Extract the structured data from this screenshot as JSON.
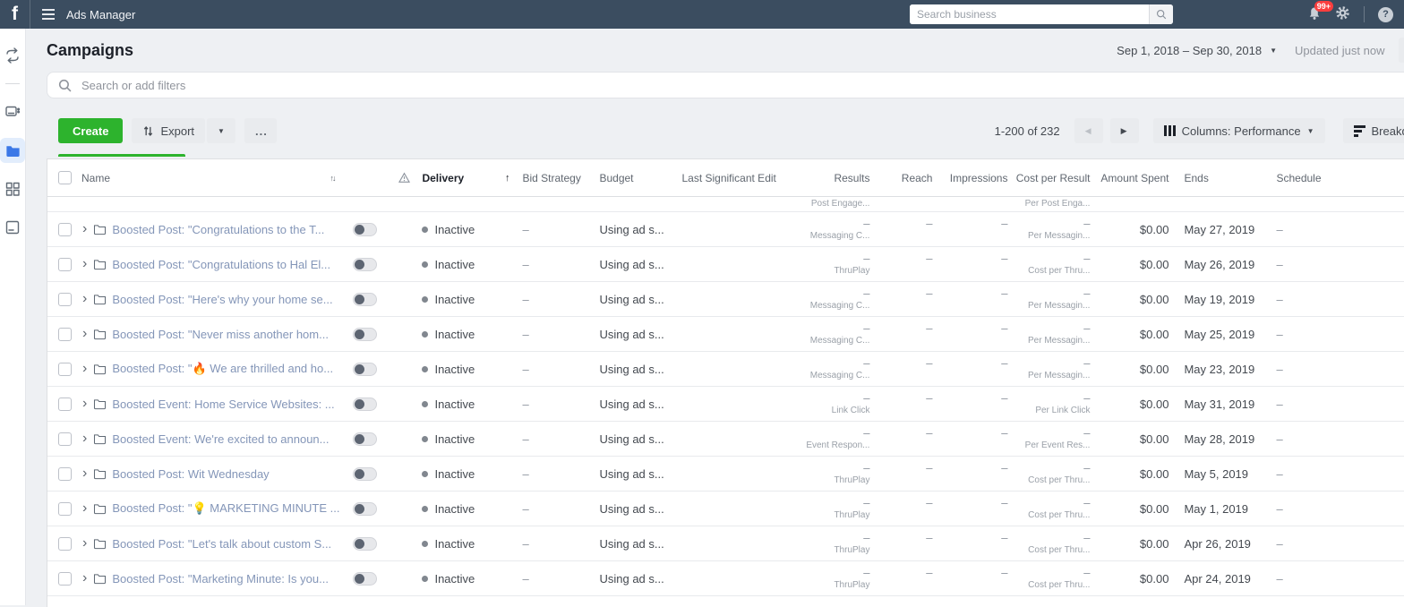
{
  "topbar": {
    "logo_letter": "f",
    "app_title": "Ads Manager",
    "search_placeholder": "Search business",
    "notification_badge": "99+",
    "help_glyph": "?"
  },
  "header": {
    "title": "Campaigns",
    "date_range": "Sep 1, 2018 – Sep 30, 2018",
    "updated_status": "Updated just now"
  },
  "filter_bar": {
    "placeholder": "Search or add filters"
  },
  "toolbar": {
    "create_label": "Create",
    "export_label": "Export",
    "more_label": "...",
    "pagination": "1-200 of 232",
    "prev_glyph": "◀",
    "next_glyph": "▶",
    "columns_label": "Columns: Performance",
    "breakdown_label": "Breakdown"
  },
  "colors": {
    "topbar_bg": "#3b4d60",
    "accent_green": "#2db32d",
    "active_icon_blue": "#3b78e7",
    "name_link_blue": "#8496b8",
    "badge_red": "#fa3e3e"
  },
  "table": {
    "headers": {
      "name": "Name",
      "delivery": "Delivery",
      "bid": "Bid Strategy",
      "budget": "Budget",
      "last_edit": "Last Significant Edit",
      "results": "Results",
      "reach": "Reach",
      "impressions": "Impressions",
      "cost": "Cost per Result",
      "amount": "Amount Spent",
      "ends": "Ends",
      "schedule": "Schedule"
    },
    "partial_row": {
      "results_label": "Post Engage...",
      "cost_label": "Per Post Enga..."
    },
    "rows": [
      {
        "name": "Boosted Post: \"Congratulations to the T...",
        "delivery": "Inactive",
        "bid": "–",
        "budget": "Using ad s...",
        "last_edit": "",
        "results_value": "–",
        "results_label": "Messaging C...",
        "reach": "–",
        "impressions": "–",
        "cost_value": "–",
        "cost_label": "Per Messagin...",
        "amount": "$0.00",
        "ends": "May 27, 2019",
        "schedule": "–"
      },
      {
        "name": "Boosted Post: \"Congratulations to Hal El...",
        "delivery": "Inactive",
        "bid": "–",
        "budget": "Using ad s...",
        "last_edit": "",
        "results_value": "–",
        "results_label": "ThruPlay",
        "reach": "–",
        "impressions": "–",
        "cost_value": "–",
        "cost_label": "Cost per Thru...",
        "amount": "$0.00",
        "ends": "May 26, 2019",
        "schedule": "–"
      },
      {
        "name": "Boosted Post: \"Here's why your home se...",
        "delivery": "Inactive",
        "bid": "–",
        "budget": "Using ad s...",
        "last_edit": "",
        "results_value": "–",
        "results_label": "Messaging C...",
        "reach": "–",
        "impressions": "–",
        "cost_value": "–",
        "cost_label": "Per Messagin...",
        "amount": "$0.00",
        "ends": "May 19, 2019",
        "schedule": "–"
      },
      {
        "name": "Boosted Post: \"Never miss another hom...",
        "delivery": "Inactive",
        "bid": "–",
        "budget": "Using ad s...",
        "last_edit": "",
        "results_value": "–",
        "results_label": "Messaging C...",
        "reach": "–",
        "impressions": "–",
        "cost_value": "–",
        "cost_label": "Per Messagin...",
        "amount": "$0.00",
        "ends": "May 25, 2019",
        "schedule": "–"
      },
      {
        "name": "Boosted Post: \"🔥 We are thrilled and ho...",
        "delivery": "Inactive",
        "bid": "–",
        "budget": "Using ad s...",
        "last_edit": "",
        "results_value": "–",
        "results_label": "Messaging C...",
        "reach": "–",
        "impressions": "–",
        "cost_value": "–",
        "cost_label": "Per Messagin...",
        "amount": "$0.00",
        "ends": "May 23, 2019",
        "schedule": "–"
      },
      {
        "name": "Boosted Event: Home Service Websites: ...",
        "delivery": "Inactive",
        "bid": "–",
        "budget": "Using ad s...",
        "last_edit": "",
        "results_value": "–",
        "results_label": "Link Click",
        "reach": "–",
        "impressions": "–",
        "cost_value": "–",
        "cost_label": "Per Link Click",
        "amount": "$0.00",
        "ends": "May 31, 2019",
        "schedule": "–"
      },
      {
        "name": "Boosted Event: We're excited to announ...",
        "delivery": "Inactive",
        "bid": "–",
        "budget": "Using ad s...",
        "last_edit": "",
        "results_value": "–",
        "results_label": "Event Respon...",
        "reach": "–",
        "impressions": "–",
        "cost_value": "–",
        "cost_label": "Per Event Res...",
        "amount": "$0.00",
        "ends": "May 28, 2019",
        "schedule": "–"
      },
      {
        "name": "Boosted Post: Wit Wednesday",
        "delivery": "Inactive",
        "bid": "–",
        "budget": "Using ad s...",
        "last_edit": "",
        "results_value": "–",
        "results_label": "ThruPlay",
        "reach": "–",
        "impressions": "–",
        "cost_value": "–",
        "cost_label": "Cost per Thru...",
        "amount": "$0.00",
        "ends": "May 5, 2019",
        "schedule": "–"
      },
      {
        "name": "Boosted Post: \"💡 MARKETING MINUTE ...",
        "delivery": "Inactive",
        "bid": "–",
        "budget": "Using ad s...",
        "last_edit": "",
        "results_value": "–",
        "results_label": "ThruPlay",
        "reach": "–",
        "impressions": "–",
        "cost_value": "–",
        "cost_label": "Cost per Thru...",
        "amount": "$0.00",
        "ends": "May 1, 2019",
        "schedule": "–"
      },
      {
        "name": "Boosted Post: \"Let's talk about custom S...",
        "delivery": "Inactive",
        "bid": "–",
        "budget": "Using ad s...",
        "last_edit": "",
        "results_value": "–",
        "results_label": "ThruPlay",
        "reach": "–",
        "impressions": "–",
        "cost_value": "–",
        "cost_label": "Cost per Thru...",
        "amount": "$0.00",
        "ends": "Apr 26, 2019",
        "schedule": "–"
      },
      {
        "name": "Boosted Post: \"Marketing Minute: Is you...",
        "delivery": "Inactive",
        "bid": "–",
        "budget": "Using ad s...",
        "last_edit": "",
        "results_value": "–",
        "results_label": "ThruPlay",
        "reach": "–",
        "impressions": "–",
        "cost_value": "–",
        "cost_label": "Cost per Thru...",
        "amount": "$0.00",
        "ends": "Apr 24, 2019",
        "schedule": "–"
      }
    ]
  }
}
